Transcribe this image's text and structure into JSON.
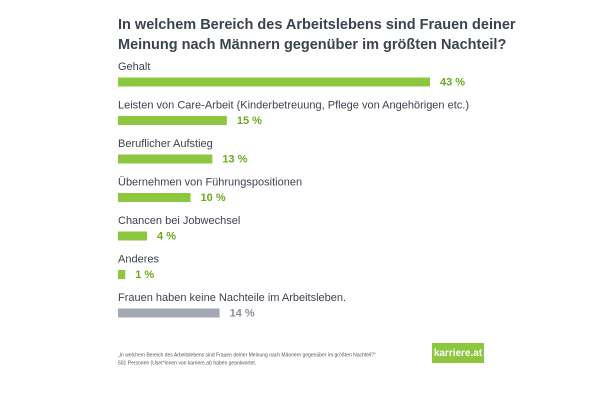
{
  "chart_data": {
    "type": "hbar",
    "title_lines": [
      "In welchem Bereich des Arbeitslebens sind Frauen deiner",
      "Meinung nach Männern gegenüber im größten Nachteil?"
    ],
    "categories": [
      "Gehalt",
      "Leisten von Care-Arbeit (Kinderbetreuung, Pflege von Angehörigen etc.)",
      "Beruflicher Aufstieg",
      "Übernehmen von Führungspositionen",
      "Chancen bei Jobwechsel",
      "Anderes",
      "Frauen haben keine Nachteile im Arbeitsleben."
    ],
    "values": [
      43,
      15,
      13,
      10,
      4,
      1,
      14
    ],
    "value_labels": [
      "43 %",
      "15 %",
      "13 %",
      "10 %",
      "4 %",
      "1 %",
      "14 %"
    ],
    "colors": [
      "#8dc63f",
      "#8dc63f",
      "#8dc63f",
      "#8dc63f",
      "#8dc63f",
      "#8dc63f",
      "#a4a8b4"
    ],
    "footnote_lines": [
      "„In welchem Bereich des Arbeitslebens sind Frauen deiner Meinung nach Männern gegenüber im größten Nachteil?“",
      "501 Personen (User*innen von karriere.at) haben geantwortet."
    ],
    "logo": "karriere.at"
  }
}
